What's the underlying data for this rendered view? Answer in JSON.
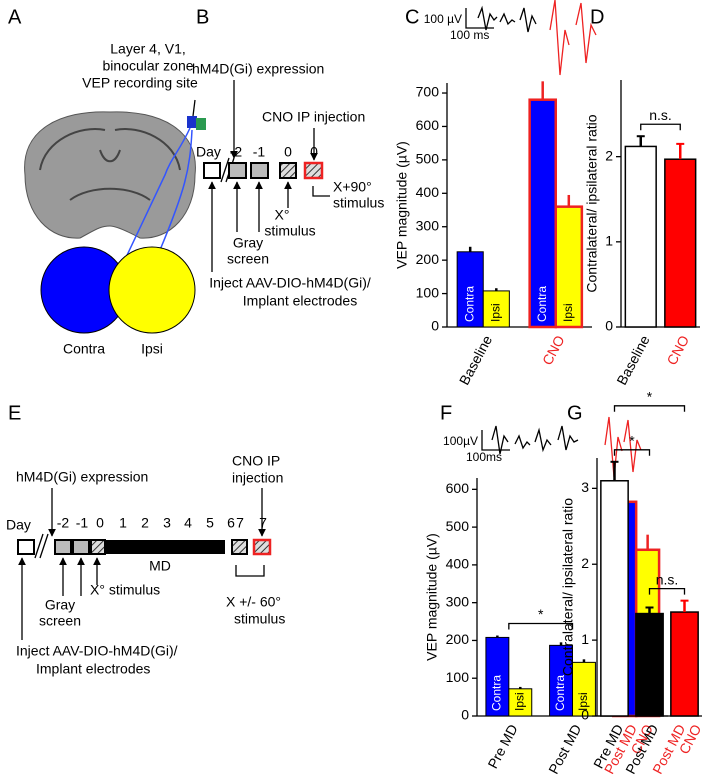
{
  "panels": {
    "A": {
      "letter": "A",
      "site": [
        "Layer 4, V1,",
        "binocular zone",
        "VEP recording site"
      ],
      "contra": "Contra",
      "ipsi": "Ipsi"
    },
    "B": {
      "letter": "B",
      "expression": "hM4D(Gi) expression",
      "cno": [
        "CNO IP injection"
      ],
      "day": "Day",
      "days": [
        "-2",
        "-1",
        "0",
        "0"
      ],
      "rotated": [
        "X+90°",
        "stimulus"
      ],
      "gray": [
        "Gray",
        "screen"
      ],
      "stimulus": [
        "X°",
        "stimulus"
      ],
      "inject": [
        "Inject AAV-DIO-hM4D(Gi)/",
        "Implant electrodes"
      ]
    },
    "E": {
      "letter": "E",
      "expression": "hM4D(Gi) expression",
      "cno": [
        "CNO IP",
        "injection"
      ],
      "day": "Day",
      "days": [
        "-2",
        "-1",
        "0",
        "1",
        "2",
        "3",
        "4",
        "5",
        "6",
        "7",
        "7"
      ],
      "md": "MD",
      "rotated": [
        "X +/- 60°",
        "stimulus"
      ],
      "gray": [
        "Gray",
        "screen"
      ],
      "stimulus": [
        "X° stimulus"
      ],
      "inject": [
        "Inject AAV-DIO-hM4D(Gi)/",
        "Implant electrodes"
      ]
    }
  },
  "chart_data": [
    {
      "type": "bar",
      "letter": "C",
      "ylabel": "VEP magnitude (µV)",
      "scale_bar": [
        "100 µV",
        "100 ms"
      ],
      "categories": [
        "Baseline",
        "CNO"
      ],
      "category_colors": [
        "#000000",
        "#ee2222"
      ],
      "series": [
        {
          "name": "Contra",
          "color": "#0000ff",
          "values": [
            225,
            680
          ],
          "errors": [
            15,
            55
          ]
        },
        {
          "name": "Ipsi",
          "color": "#ffff00",
          "values": [
            108,
            360
          ],
          "errors": [
            8,
            35
          ]
        }
      ],
      "ylim": [
        0,
        730
      ],
      "yticks": [
        0,
        100,
        200,
        300,
        400,
        500,
        600,
        700
      ]
    },
    {
      "type": "bar",
      "letter": "D",
      "ylabel": "Contralateral/ ipsilateral ratio",
      "categories": [
        "Baseline",
        "CNO"
      ],
      "category_colors": [
        "#000000",
        "#ee2222"
      ],
      "colors": [
        "#ffffff",
        "#ff0000"
      ],
      "values": [
        2.12,
        1.97
      ],
      "errors": [
        0.12,
        0.18
      ],
      "ylim": [
        0,
        2.9
      ],
      "yticks": [
        0,
        1,
        2
      ],
      "annotations": [
        {
          "text": "n.s.",
          "between": [
            0,
            1
          ]
        }
      ]
    },
    {
      "type": "bar",
      "letter": "F",
      "ylabel": "VEP magnitude (µV)",
      "scale_bar": [
        "100µV",
        "100ms"
      ],
      "categories": [
        "Pre MD",
        "Post MD",
        [
          "Post MD",
          "CNO"
        ]
      ],
      "category_colors": [
        "#000000",
        "#000000",
        "#ee2222"
      ],
      "series": [
        {
          "name": "Contra",
          "color": "#0000ff",
          "values": [
            208,
            187,
            567
          ],
          "errors": [
            5,
            8,
            40
          ]
        },
        {
          "name": "Ipsi",
          "color": "#ffff00",
          "values": [
            72,
            142,
            440
          ],
          "errors": [
            5,
            8,
            40
          ]
        }
      ],
      "ylim": [
        0,
        630
      ],
      "yticks": [
        0,
        100,
        200,
        300,
        400,
        500,
        600
      ],
      "annotations": [
        {
          "text": "*",
          "between": [
            0,
            1
          ]
        }
      ]
    },
    {
      "type": "bar",
      "letter": "G",
      "ylabel": "Contralateral/ ipsilateral ratio",
      "categories": [
        "Pre MD",
        "Post MD",
        [
          "Post MD",
          "CNO"
        ]
      ],
      "category_colors": [
        "#000000",
        "#000000",
        "#ee2222"
      ],
      "colors": [
        "#ffffff",
        "#000000",
        "#ff0000"
      ],
      "values": [
        3.1,
        1.35,
        1.37
      ],
      "errors": [
        0.25,
        0.08,
        0.15
      ],
      "ylim": [
        0,
        3.4
      ],
      "yticks": [
        0,
        1,
        2,
        3
      ],
      "annotations": [
        {
          "text": "*",
          "between": [
            0,
            2
          ]
        },
        {
          "text": "*",
          "between": [
            0,
            1
          ]
        },
        {
          "text": "n.s.",
          "between": [
            1,
            2
          ]
        }
      ]
    }
  ]
}
